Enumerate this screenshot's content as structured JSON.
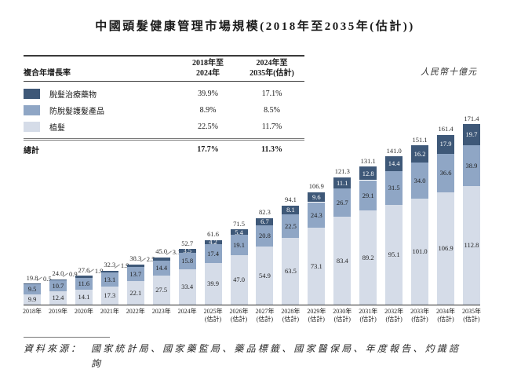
{
  "title": "中國頭髮健康管理市場規模(2018年至2035年(估計))",
  "unit_label": "人民幣十億元",
  "cagr_table": {
    "header": {
      "label": "複合年增長率",
      "period1_line1": "2018年至",
      "period1_line2": "2024年",
      "period2_line1": "2024年至",
      "period2_line2": "2035年(估計)"
    },
    "rows": [
      {
        "label": "脫髮治療藥物",
        "period1": "39.9%",
        "period2": "17.1%",
        "color": "#3e5878"
      },
      {
        "label": "防脫髮護髮產品",
        "period1": "8.9%",
        "period2": "8.5%",
        "color": "#8fa6c5"
      },
      {
        "label": "植髮",
        "period1": "22.5%",
        "period2": "11.7%",
        "color": "#d5dce8"
      }
    ],
    "total_row": {
      "label": "總計",
      "period1": "17.7%",
      "period2": "11.3%"
    }
  },
  "chart_data": {
    "type": "bar",
    "stacked": true,
    "title": "中國頭髮健康管理市場規模(2018年至2035年(估計))",
    "ylabel": "人民幣十億元",
    "ylim": [
      0,
      180
    ],
    "grid": false,
    "legend_position": "top-left-table",
    "categories": [
      {
        "year": "2018年",
        "note": ""
      },
      {
        "year": "2019年",
        "note": ""
      },
      {
        "year": "2020年",
        "note": ""
      },
      {
        "year": "2021年",
        "note": ""
      },
      {
        "year": "2022年",
        "note": ""
      },
      {
        "year": "2023年",
        "note": ""
      },
      {
        "year": "2024年",
        "note": ""
      },
      {
        "year": "2025年",
        "note": "(估計)"
      },
      {
        "year": "2026年",
        "note": "(估計)"
      },
      {
        "year": "2027年",
        "note": "(估計)"
      },
      {
        "year": "2028年",
        "note": "(估計)"
      },
      {
        "year": "2029年",
        "note": "(估計)"
      },
      {
        "year": "2030年",
        "note": "(估計)"
      },
      {
        "year": "2031年",
        "note": "(估計)"
      },
      {
        "year": "2032年",
        "note": "(估計)"
      },
      {
        "year": "2033年",
        "note": "(估計)"
      },
      {
        "year": "2034年",
        "note": "(估計)"
      },
      {
        "year": "2035年",
        "note": "(估計)"
      }
    ],
    "series": [
      {
        "name": "脫髮治療藥物",
        "key": "hair-loss-treatment-drugs",
        "color": "#3e5878",
        "values": [
          0.5,
          0.9,
          1.9,
          1.9,
          2.5,
          3.1,
          3.5,
          4.2,
          5.4,
          6.7,
          8.1,
          9.6,
          11.1,
          12.8,
          14.4,
          16.2,
          17.9,
          19.7
        ]
      },
      {
        "name": "防脫髮護髮產品",
        "key": "anti-hair-loss-care-products",
        "color": "#8fa6c5",
        "values": [
          9.5,
          10.7,
          11.6,
          13.1,
          13.7,
          14.4,
          15.8,
          17.4,
          19.1,
          20.8,
          22.5,
          24.3,
          26.7,
          29.1,
          31.5,
          34.0,
          36.6,
          38.9
        ]
      },
      {
        "name": "植髮",
        "key": "hair-transplant",
        "color": "#d5dce8",
        "values": [
          9.9,
          12.4,
          14.1,
          17.3,
          22.1,
          27.5,
          33.4,
          39.9,
          47.0,
          54.9,
          63.5,
          73.1,
          83.4,
          89.2,
          95.1,
          101.0,
          106.9,
          112.8
        ]
      }
    ],
    "totals": [
      19.8,
      24.0,
      27.6,
      32.3,
      38.3,
      45.0,
      52.7,
      61.6,
      71.5,
      82.3,
      94.1,
      106.9,
      121.3,
      131.1,
      141.0,
      151.1,
      161.4,
      171.4
    ]
  },
  "footer": {
    "label": "資料來源：",
    "line1": "國家統計局、國家藥監局、藥品標籤、國家醫保局、年度報告、灼識諮",
    "line2": "詢"
  }
}
